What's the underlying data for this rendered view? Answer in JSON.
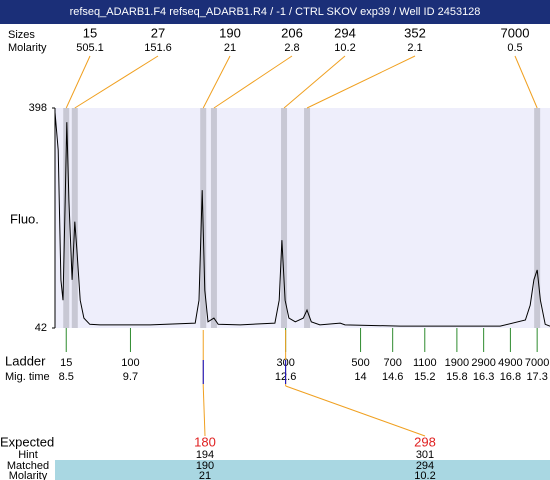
{
  "chart_data": {
    "type": "line",
    "title": "refseq_ADARB1.F4  refseq_ADARB1.R4 / -1 / CTRL SKOV  exp39 / Well ID 2453128",
    "y_label": "Fluo.",
    "xlim": [
      8.29,
      17.54
    ],
    "ylim": [
      42,
      398
    ],
    "yticks": [
      42,
      398
    ],
    "color": "#000000",
    "x": [
      8.29,
      8.35,
      8.4,
      8.44,
      8.48,
      8.51,
      8.55,
      8.61,
      8.66,
      8.7,
      8.76,
      8.83,
      8.94,
      9.13,
      10.07,
      10.91,
      10.98,
      11.04,
      11.09,
      11.15,
      11.26,
      11.34,
      11.75,
      12.4,
      12.48,
      12.53,
      12.59,
      12.66,
      12.78,
      12.93,
      13.0,
      13.08,
      13.24,
      13.62,
      13.71,
      14.74,
      16.61,
      17.08,
      17.17,
      17.24,
      17.3,
      17.36,
      17.45,
      17.54
    ],
    "values": [
      391,
      330,
      120,
      87,
      249,
      375,
      249,
      120,
      214,
      168,
      87,
      58,
      48,
      47,
      47,
      50,
      87,
      265,
      103,
      52,
      58,
      48,
      47,
      50,
      87,
      184,
      87,
      58,
      52,
      58,
      71,
      52,
      47,
      50,
      47,
      45,
      45,
      55,
      79,
      120,
      136,
      87,
      48,
      45
    ],
    "peaks": {
      "label": "Sizes",
      "molarity_label": "Molarity",
      "sizes": [
        15,
        27,
        190,
        206,
        294,
        352,
        7000
      ],
      "molarity": [
        505.1,
        151.6,
        21,
        2.8,
        10.2,
        2.1,
        0.5
      ],
      "times": [
        8.5,
        8.66,
        11.06,
        11.26,
        12.57,
        13.0,
        17.3
      ]
    },
    "ladder": {
      "label": "Ladder",
      "time_label": "Mig. time",
      "sizes": [
        15,
        100,
        300,
        500,
        700,
        1100,
        1900,
        2900,
        4900,
        7000
      ],
      "times": [
        8.5,
        9.7,
        12.6,
        14,
        14.6,
        15.2,
        15.8,
        16.3,
        16.8,
        17.3
      ]
    },
    "expected": {
      "label": "Expected",
      "hint_label": "Hint",
      "matched_label": "Matched",
      "molarity_label": "Molarity",
      "values": [
        180,
        298
      ],
      "hint": [
        194,
        301
      ],
      "matched": [
        190,
        294
      ],
      "molarity": [
        21,
        10.2
      ],
      "times": [
        11.06,
        12.6
      ]
    }
  }
}
